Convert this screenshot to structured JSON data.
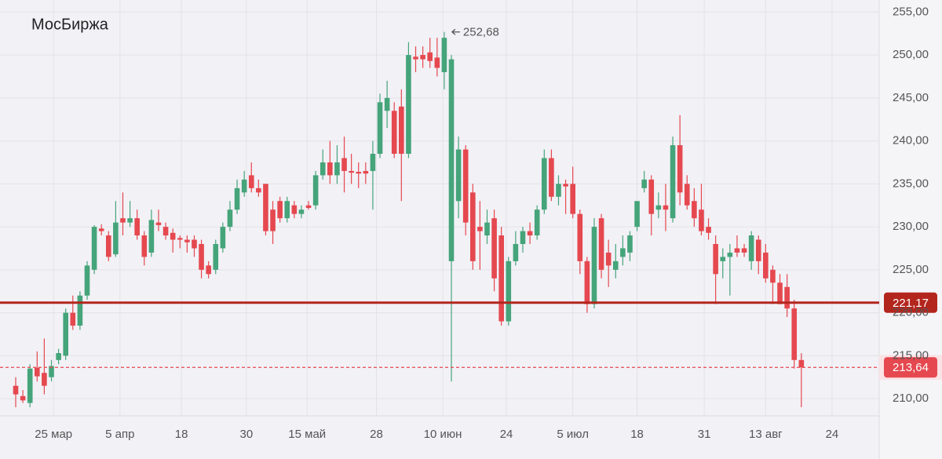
{
  "chart_data": {
    "type": "candlestick",
    "title": "МосБиржа",
    "up_color": "#45a47a",
    "down_color": "#e5484f",
    "open": [
      211.5,
      210.3,
      209.5,
      213.6,
      213,
      212.5,
      214.5,
      215,
      220,
      218.5,
      222,
      225,
      229.8,
      229,
      226.8,
      231,
      230.5,
      231,
      229,
      227,
      230.5,
      230,
      229.3,
      228.7,
      228.5,
      228.5,
      228,
      225.5,
      225,
      227.5,
      230,
      232,
      234,
      236,
      234.5,
      235,
      232,
      233,
      231,
      232.5,
      231.5,
      232.5,
      232.5,
      236,
      237.5,
      236,
      238,
      236.5,
      236.4,
      236.5,
      236.5,
      238.5,
      243.5,
      243.5,
      244,
      238.5,
      249.8,
      250,
      250.3,
      249.7,
      248,
      226,
      233,
      239,
      234,
      230,
      229,
      231,
      229,
      219,
      226,
      228,
      229.5,
      229,
      232,
      238,
      233.5,
      235,
      235,
      231.5,
      226,
      221,
      231,
      227,
      225,
      226.5,
      227,
      230,
      234.5,
      235.5,
      232,
      232.5,
      231,
      239.5,
      235,
      233,
      232,
      230,
      228,
      226,
      226.5,
      227.5,
      227.5,
      226,
      228.5,
      227,
      225,
      223.5,
      223,
      220.5,
      214.5
    ],
    "high": [
      212.5,
      211,
      214,
      215.5,
      217,
      214.5,
      215.8,
      220.5,
      222,
      222.5,
      226,
      230.2,
      230.3,
      229.5,
      233,
      234,
      233,
      232,
      229.5,
      232,
      232,
      230.5,
      229.8,
      229,
      229,
      229,
      228.5,
      226,
      228.5,
      230.5,
      233,
      235.5,
      236.5,
      237.5,
      235.5,
      235,
      233,
      233.5,
      233.5,
      233,
      232.5,
      233,
      236.5,
      239,
      240,
      239.5,
      240.5,
      238.5,
      237.5,
      237.5,
      240,
      245.5,
      247,
      244.5,
      246,
      251.5,
      251,
      251,
      252,
      252,
      252.68,
      250,
      240.5,
      239.5,
      235,
      233,
      232,
      232,
      230,
      226.5,
      229.5,
      230,
      230.5,
      232.5,
      239,
      239,
      236,
      235.5,
      237,
      232,
      226.5,
      231,
      231.5,
      228.5,
      228,
      229,
      229.5,
      233,
      236.5,
      236,
      234,
      235,
      240.5,
      243,
      236,
      234.5,
      235,
      231,
      229,
      227.5,
      228,
      229,
      228,
      229.5,
      229,
      228,
      225.5,
      224.5,
      224.5,
      221.5,
      215.3
    ],
    "low": [
      209,
      209.5,
      209,
      212,
      210.5,
      212,
      214,
      214.5,
      218,
      218,
      221.5,
      224.5,
      229,
      226,
      226.5,
      229,
      230,
      228.5,
      225.5,
      226.5,
      229.5,
      228.5,
      227,
      227.5,
      227,
      226.5,
      224,
      224,
      224.5,
      227,
      229.5,
      231.5,
      233.5,
      234,
      233.5,
      229,
      228,
      230.5,
      230.5,
      231,
      231,
      232,
      232,
      235.5,
      235,
      235,
      234,
      235,
      234.5,
      235,
      232,
      238,
      241.5,
      238,
      233,
      238,
      248,
      248.5,
      248.5,
      247.5,
      246,
      212,
      231,
      229,
      225,
      225,
      228,
      222.5,
      218.5,
      218.5,
      225.5,
      227,
      228,
      228.5,
      231.5,
      233,
      232.5,
      231.5,
      231,
      224.5,
      220,
      220.5,
      224,
      223,
      224,
      225.5,
      226,
      229.5,
      234,
      229,
      231,
      229.5,
      230.5,
      232.5,
      232,
      230,
      229,
      228.5,
      221,
      224,
      222,
      226.5,
      226.5,
      225,
      224.5,
      223.5,
      221,
      221,
      219.5,
      213.5,
      209
    ],
    "close": [
      210.5,
      209.8,
      213.5,
      212.6,
      211.5,
      213.8,
      215.3,
      220,
      218.5,
      222,
      225.5,
      230,
      229.5,
      226.5,
      230.5,
      230.5,
      231,
      229,
      226.5,
      230.8,
      230.2,
      229,
      228.5,
      228.5,
      228.2,
      227.5,
      225,
      224.5,
      228,
      230,
      232,
      234.5,
      235.5,
      234.5,
      234,
      229.5,
      229.5,
      231,
      233,
      231.5,
      232,
      232.2,
      236,
      237.5,
      236,
      237.5,
      236.5,
      236.3,
      236.2,
      236.2,
      238.5,
      244.5,
      245,
      238.5,
      238.5,
      250,
      249.5,
      249.5,
      249.3,
      248.5,
      252,
      249.5,
      239,
      230.5,
      226,
      229.5,
      230.5,
      224,
      219,
      226,
      228,
      229.5,
      229,
      232,
      238,
      233.5,
      235,
      234.7,
      231.5,
      226,
      221,
      230,
      225,
      225.5,
      226,
      227.5,
      229,
      233,
      235.5,
      231.5,
      232.5,
      232,
      239.5,
      234,
      232.5,
      231,
      229.5,
      229.3,
      224.5,
      226.5,
      227,
      227,
      227,
      229,
      226,
      224,
      223.5,
      221,
      220.5,
      214.5,
      213.64
    ],
    "xlim": [
      -2.2,
      120.9
    ],
    "xticks": [
      {
        "value": 5.3,
        "label": "25 мар"
      },
      {
        "value": 14.6,
        "label": "5 апр"
      },
      {
        "value": 23.2,
        "label": "18"
      },
      {
        "value": 32.3,
        "label": "30"
      },
      {
        "value": 40.8,
        "label": "15 май"
      },
      {
        "value": 50.5,
        "label": "28"
      },
      {
        "value": 59.8,
        "label": "10 июн"
      },
      {
        "value": 68.7,
        "label": "24"
      },
      {
        "value": 78,
        "label": "5 июл"
      },
      {
        "value": 87,
        "label": "18"
      },
      {
        "value": 96.4,
        "label": "31"
      },
      {
        "value": 105,
        "label": "13 авг"
      },
      {
        "value": 114.3,
        "label": "24"
      }
    ],
    "ylim": [
      208,
      256.4
    ],
    "yticks": [
      {
        "value": 210,
        "label": "210,00"
      },
      {
        "value": 215,
        "label": "215,00"
      },
      {
        "value": 220,
        "label": "220,00"
      },
      {
        "value": 225,
        "label": "225,00"
      },
      {
        "value": 230,
        "label": "230,00"
      },
      {
        "value": 235,
        "label": "235,00"
      },
      {
        "value": 240,
        "label": "240,00"
      },
      {
        "value": 245,
        "label": "245,00"
      },
      {
        "value": 250,
        "label": "250,00"
      },
      {
        "value": 255,
        "label": "255,00"
      }
    ],
    "grid": true,
    "lines": [
      {
        "value": 221.17,
        "label": "221,17",
        "color": "#b3261e",
        "style": "solid"
      },
      {
        "value": 213.64,
        "label": "213,64",
        "color": "#e5484f",
        "style": "dashed"
      }
    ],
    "annotation": {
      "index": 60,
      "value": 252.68,
      "label": "252,68"
    }
  }
}
